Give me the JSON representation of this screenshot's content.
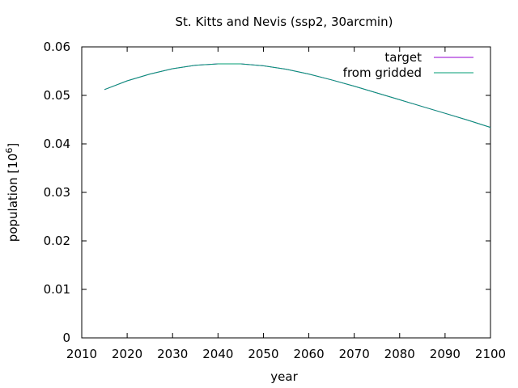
{
  "chart_data": {
    "type": "line",
    "title": "St. Kitts and Nevis (ssp2, 30arcmin)",
    "xlabel": "year",
    "ylabel": "population [10",
    "ylabel_sup": "6",
    "ylabel_close": "]",
    "xlim": [
      2010,
      2100
    ],
    "ylim": [
      0,
      0.06
    ],
    "xticks": [
      2010,
      2020,
      2030,
      2040,
      2050,
      2060,
      2070,
      2080,
      2090,
      2100
    ],
    "yticks": [
      0,
      0.01,
      0.02,
      0.03,
      0.04,
      0.05,
      0.06
    ],
    "ytick_labels": [
      "0",
      "0.01",
      "0.02",
      "0.03",
      "0.04",
      "0.05",
      "0.06"
    ],
    "grid": false,
    "legend_position": "top-right",
    "x": [
      2015,
      2020,
      2025,
      2030,
      2035,
      2040,
      2045,
      2050,
      2055,
      2060,
      2065,
      2070,
      2075,
      2080,
      2085,
      2090,
      2095,
      2100
    ],
    "series": [
      {
        "name": "target",
        "color": "#9400d3",
        "values": [
          0.0512,
          0.053,
          0.0544,
          0.0555,
          0.0562,
          0.0565,
          0.0565,
          0.0561,
          0.0554,
          0.0544,
          0.0532,
          0.0519,
          0.0505,
          0.0491,
          0.0477,
          0.0463,
          0.0449,
          0.0434
        ]
      },
      {
        "name": "from gridded",
        "color": "#009e73",
        "values": [
          0.0512,
          0.053,
          0.0544,
          0.0555,
          0.0562,
          0.0565,
          0.0565,
          0.0561,
          0.0554,
          0.0544,
          0.0532,
          0.0519,
          0.0505,
          0.0491,
          0.0477,
          0.0463,
          0.0449,
          0.0434
        ]
      }
    ]
  }
}
